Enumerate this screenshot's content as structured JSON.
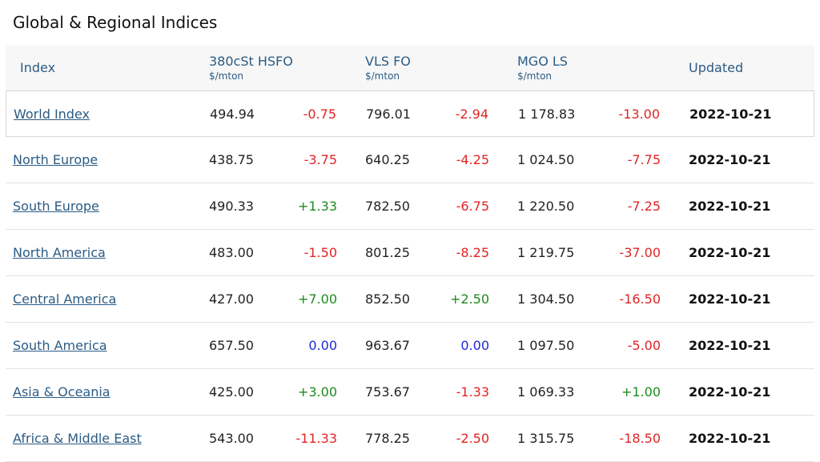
{
  "page": {
    "title": "Global & Regional Indices"
  },
  "table": {
    "headers": {
      "index": "Index",
      "hsfo": "380cSt HSFO",
      "hsfo_unit": "$/mton",
      "vlsfo": "VLS FO",
      "vlsfo_unit": "$/mton",
      "mgo": "MGO LS",
      "mgo_unit": "$/mton",
      "updated": "Updated"
    },
    "rows": [
      {
        "name": "World Index",
        "hsfo": "494.94",
        "hsfo_chg": "-0.75",
        "hsfo_dir": "neg",
        "vlsfo": "796.01",
        "vlsfo_chg": "-2.94",
        "vlsfo_dir": "neg",
        "mgo": "1 178.83",
        "mgo_chg": "-13.00",
        "mgo_dir": "neg",
        "updated": "2022-10-21"
      },
      {
        "name": "North Europe",
        "hsfo": "438.75",
        "hsfo_chg": "-3.75",
        "hsfo_dir": "neg",
        "vlsfo": "640.25",
        "vlsfo_chg": "-4.25",
        "vlsfo_dir": "neg",
        "mgo": "1 024.50",
        "mgo_chg": "-7.75",
        "mgo_dir": "neg",
        "updated": "2022-10-21"
      },
      {
        "name": "South Europe",
        "hsfo": "490.33",
        "hsfo_chg": "+1.33",
        "hsfo_dir": "pos",
        "vlsfo": "782.50",
        "vlsfo_chg": "-6.75",
        "vlsfo_dir": "neg",
        "mgo": "1 220.50",
        "mgo_chg": "-7.25",
        "mgo_dir": "neg",
        "updated": "2022-10-21"
      },
      {
        "name": "North America",
        "hsfo": "483.00",
        "hsfo_chg": "-1.50",
        "hsfo_dir": "neg",
        "vlsfo": "801.25",
        "vlsfo_chg": "-8.25",
        "vlsfo_dir": "neg",
        "mgo": "1 219.75",
        "mgo_chg": "-37.00",
        "mgo_dir": "neg",
        "updated": "2022-10-21"
      },
      {
        "name": "Central America",
        "hsfo": "427.00",
        "hsfo_chg": "+7.00",
        "hsfo_dir": "pos",
        "vlsfo": "852.50",
        "vlsfo_chg": "+2.50",
        "vlsfo_dir": "pos",
        "mgo": "1 304.50",
        "mgo_chg": "-16.50",
        "mgo_dir": "neg",
        "updated": "2022-10-21"
      },
      {
        "name": "South America",
        "hsfo": "657.50",
        "hsfo_chg": "0.00",
        "hsfo_dir": "zero",
        "vlsfo": "963.67",
        "vlsfo_chg": "0.00",
        "vlsfo_dir": "zero",
        "mgo": "1 097.50",
        "mgo_chg": "-5.00",
        "mgo_dir": "neg",
        "updated": "2022-10-21"
      },
      {
        "name": "Asia & Oceania",
        "hsfo": "425.00",
        "hsfo_chg": "+3.00",
        "hsfo_dir": "pos",
        "vlsfo": "753.67",
        "vlsfo_chg": "-1.33",
        "vlsfo_dir": "neg",
        "mgo": "1 069.33",
        "mgo_chg": "+1.00",
        "mgo_dir": "pos",
        "updated": "2022-10-21"
      },
      {
        "name": "Africa & Middle East",
        "hsfo": "543.00",
        "hsfo_chg": "-11.33",
        "hsfo_dir": "neg",
        "vlsfo": "778.25",
        "vlsfo_chg": "-2.50",
        "vlsfo_dir": "neg",
        "mgo": "1 315.75",
        "mgo_chg": "-18.50",
        "mgo_dir": "neg",
        "updated": "2022-10-21"
      }
    ],
    "colors": {
      "link": "#2b5b84",
      "negative": "#e02424",
      "positive": "#1e8a1e",
      "unchanged": "#1f2bd6",
      "header_bg": "#f7f7f7"
    }
  }
}
